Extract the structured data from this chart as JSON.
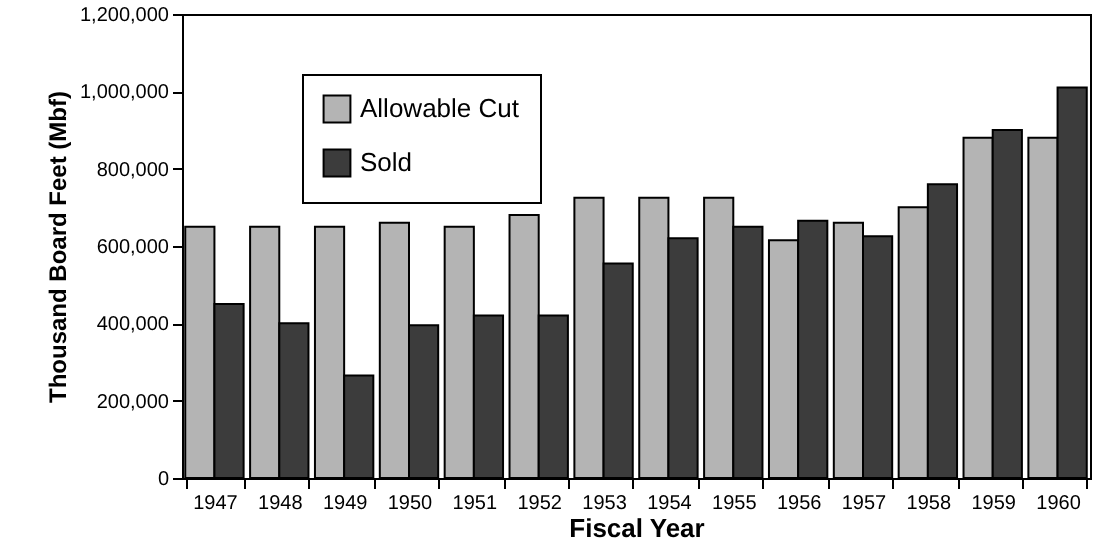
{
  "chart_data": {
    "type": "bar",
    "xlabel": "Fiscal Year",
    "ylabel": "Thousand Board Feet  (Mbf)",
    "categories": [
      "1947",
      "1948",
      "1949",
      "1950",
      "1951",
      "1952",
      "1953",
      "1954",
      "1955",
      "1956",
      "1957",
      "1958",
      "1959",
      "1960"
    ],
    "series": [
      {
        "name": "Allowable Cut",
        "color": "#b4b4b4",
        "values": [
          650000,
          650000,
          650000,
          660000,
          650000,
          680000,
          725000,
          725000,
          725000,
          615000,
          660000,
          700000,
          880000,
          880000
        ]
      },
      {
        "name": "Sold",
        "color": "#3c3c3c",
        "values": [
          450000,
          400000,
          265000,
          395000,
          420000,
          420000,
          555000,
          620000,
          650000,
          665000,
          625000,
          760000,
          900000,
          1010000
        ]
      }
    ],
    "ylim": [
      0,
      1200000
    ],
    "yticks": [
      {
        "value": 0,
        "label": "0"
      },
      {
        "value": 200000,
        "label": "200,000"
      },
      {
        "value": 400000,
        "label": "400,000"
      },
      {
        "value": 600000,
        "label": "600,000"
      },
      {
        "value": 800000,
        "label": "800,000"
      },
      {
        "value": 1000000,
        "label": "1,000,000"
      },
      {
        "value": 1200000,
        "label": "1,200,000"
      }
    ],
    "grid": false,
    "legend": "top left"
  }
}
